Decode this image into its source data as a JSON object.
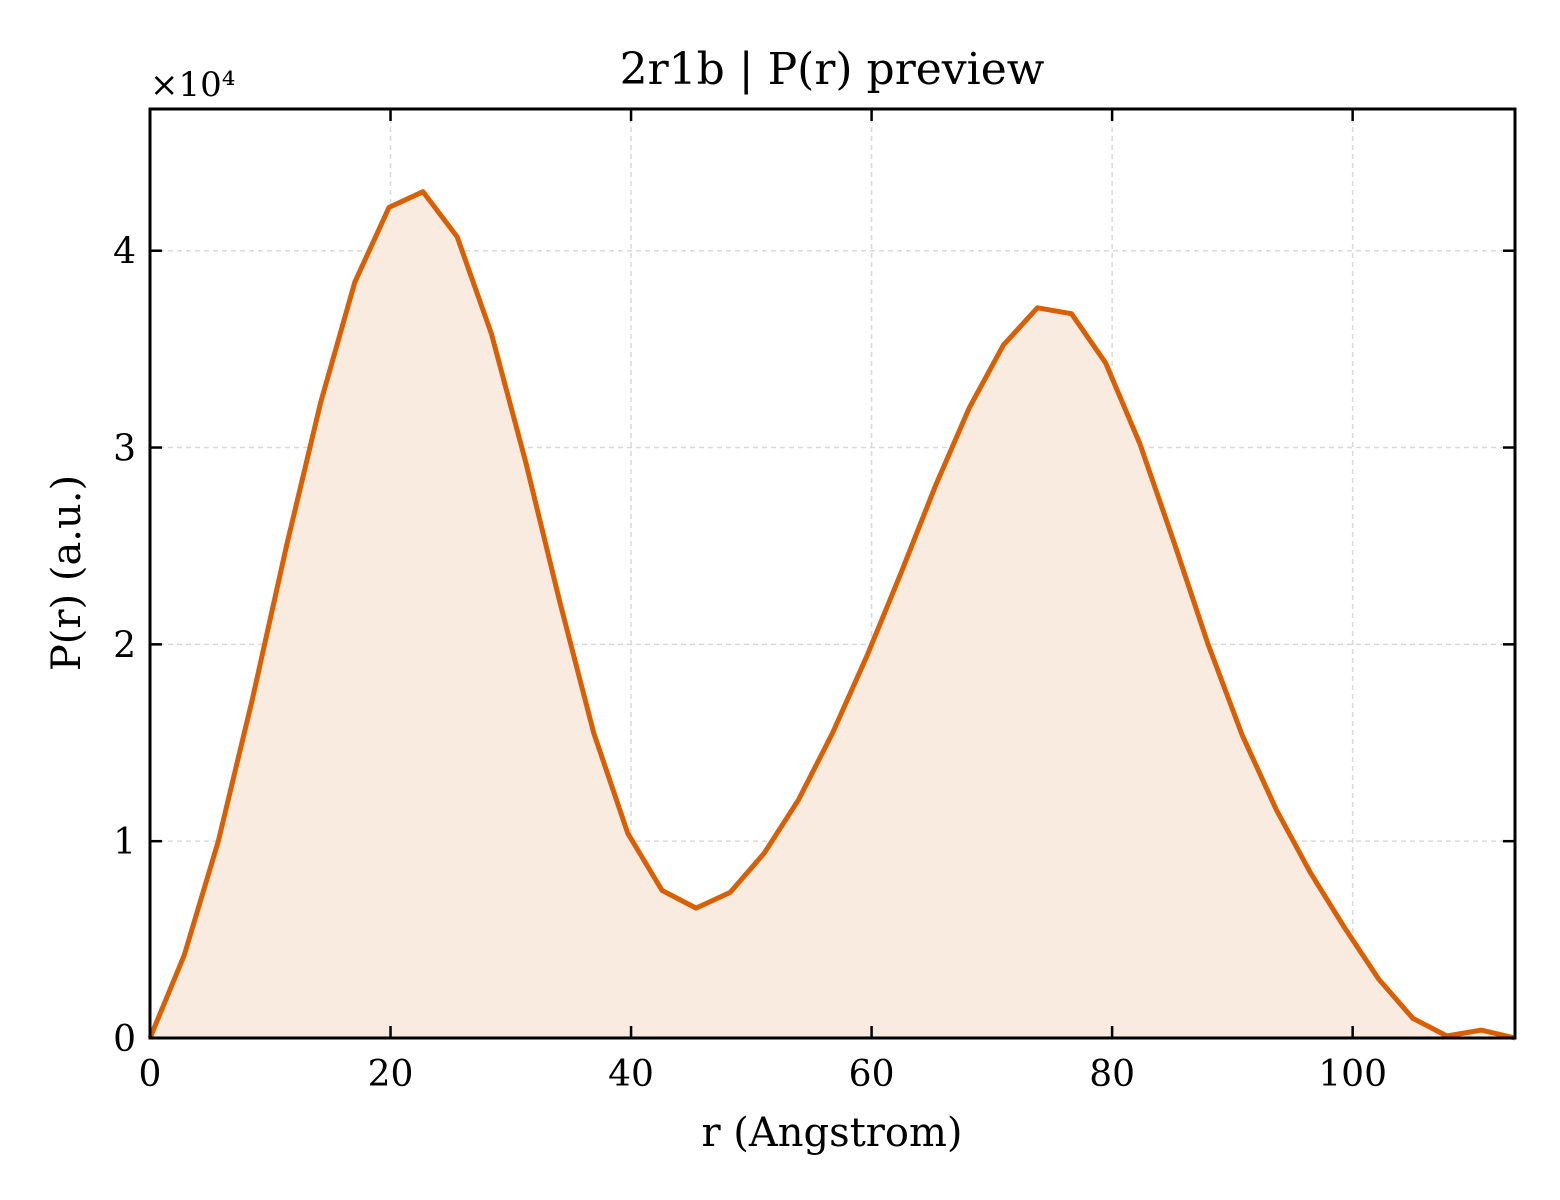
{
  "chart_data": {
    "type": "area",
    "title": "2r1b | P(r) preview",
    "xlabel": "r (Angstrom)",
    "ylabel": "P(r) (a.u.)",
    "y_scale_label": "×10⁴",
    "xlim": [
      0,
      113.5
    ],
    "ylim": [
      0,
      4.72
    ],
    "x_ticks": [
      0,
      20,
      40,
      60,
      80,
      100
    ],
    "y_ticks": [
      0,
      1,
      2,
      3,
      4
    ],
    "grid": true,
    "line_color": "#d95f02",
    "fill_color": "#f9ebe0",
    "series": [
      {
        "x": [
          0,
          2.84,
          5.68,
          8.51,
          11.35,
          14.19,
          17.03,
          19.87,
          22.7,
          25.54,
          28.38,
          31.22,
          34.06,
          36.89,
          39.73,
          42.57,
          45.41,
          48.24,
          51.08,
          53.92,
          56.76,
          59.6,
          62.43,
          65.27,
          68.11,
          70.95,
          73.79,
          76.62,
          79.46,
          82.3,
          85.14,
          87.98,
          90.81,
          93.65,
          96.49,
          99.33,
          102.16,
          105.0,
          107.84,
          110.68,
          113.5
        ],
        "values": [
          0,
          0.42,
          1.0,
          1.72,
          2.5,
          3.23,
          3.84,
          4.22,
          4.3,
          4.07,
          3.58,
          2.93,
          2.22,
          1.55,
          1.04,
          0.75,
          0.66,
          0.74,
          0.94,
          1.21,
          1.55,
          1.94,
          2.36,
          2.8,
          3.2,
          3.52,
          3.71,
          3.68,
          3.43,
          3.02,
          2.52,
          2.0,
          1.54,
          1.16,
          0.84,
          0.56,
          0.3,
          0.1,
          0.01,
          0.04,
          0.0
        ]
      }
    ]
  }
}
